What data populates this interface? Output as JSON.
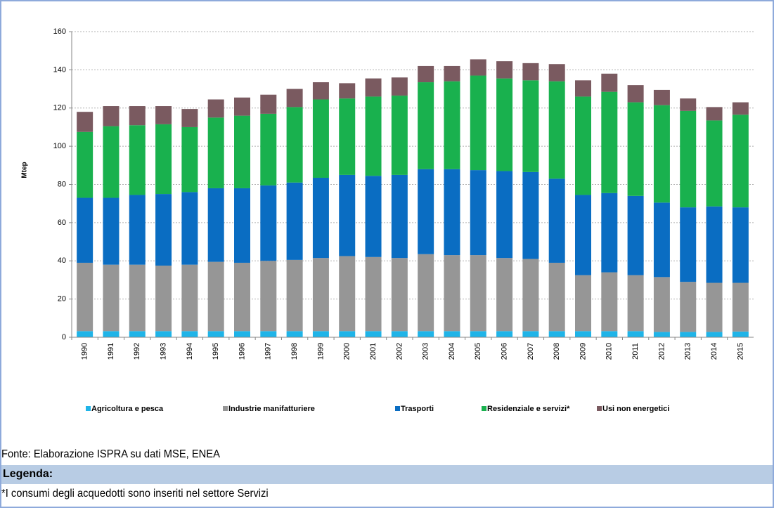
{
  "chart_data": {
    "type": "stacked_bar",
    "y_label": "Mtep",
    "categories": [
      "1990",
      "1991",
      "1992",
      "1993",
      "1994",
      "1995",
      "1996",
      "1997",
      "1998",
      "1999",
      "2000",
      "2001",
      "2002",
      "2003",
      "2004",
      "2005",
      "2006",
      "2007",
      "2008",
      "2009",
      "2010",
      "2011",
      "2012",
      "2013",
      "2014",
      "2015"
    ],
    "series": [
      {
        "name": "Agricoltura e pesca",
        "color": "#1fb4e8",
        "values": [
          3.2,
          3.2,
          3.2,
          3.2,
          3.2,
          3.2,
          3.2,
          3.2,
          3.2,
          3.2,
          3.2,
          3.2,
          3.2,
          3.2,
          3.2,
          3.2,
          3.2,
          3.2,
          3.2,
          3.2,
          3.2,
          3.2,
          2.8,
          2.8,
          2.8,
          3.0
        ]
      },
      {
        "name": "Industrie manifatturiere",
        "color": "#969696",
        "values": [
          35.8,
          34.8,
          34.8,
          34.3,
          34.8,
          36.3,
          35.8,
          36.8,
          37.3,
          38.3,
          39.3,
          38.8,
          38.3,
          40.3,
          39.8,
          39.8,
          38.3,
          37.8,
          35.8,
          29.3,
          30.8,
          29.3,
          28.7,
          26.2,
          25.7,
          25.5
        ]
      },
      {
        "name": "Trasporti",
        "color": "#0a6dc2",
        "values": [
          34,
          35,
          36.5,
          37.5,
          38,
          38.5,
          39,
          39.5,
          40.5,
          42,
          42.5,
          42.5,
          43.5,
          44.5,
          45,
          44.5,
          45.5,
          45.5,
          44,
          42,
          41.5,
          41.5,
          39,
          39,
          40,
          39.5
        ]
      },
      {
        "name": "Residenziale e servizi*",
        "color": "#19b14e",
        "values": [
          34.5,
          37.5,
          36.5,
          36.5,
          34,
          37,
          38,
          37.5,
          39.5,
          41,
          40,
          41.5,
          41.5,
          45.5,
          46,
          49.5,
          48.5,
          48,
          51,
          51.5,
          53,
          49,
          51,
          50.5,
          45,
          48.5
        ]
      },
      {
        "name": "Usi non energetici",
        "color": "#7a5a60",
        "values": [
          10.5,
          10.5,
          10,
          9.5,
          9.5,
          9.5,
          9.5,
          10,
          9.5,
          9,
          8,
          9.5,
          9.5,
          8.5,
          8,
          8.5,
          9,
          9,
          9,
          8.5,
          9.5,
          9,
          8,
          6.5,
          7,
          6.5
        ]
      }
    ],
    "ylim": [
      0,
      160
    ],
    "yticks": [
      0,
      20,
      40,
      60,
      80,
      100,
      120,
      140,
      160
    ],
    "grid": true
  },
  "source": "Fonte: Elaborazione ISPRA su dati MSE, ENEA",
  "legend_box": {
    "title": "Legenda:",
    "note": "*I consumi degli acquedotti sono inseriti nel settore Servizi"
  }
}
